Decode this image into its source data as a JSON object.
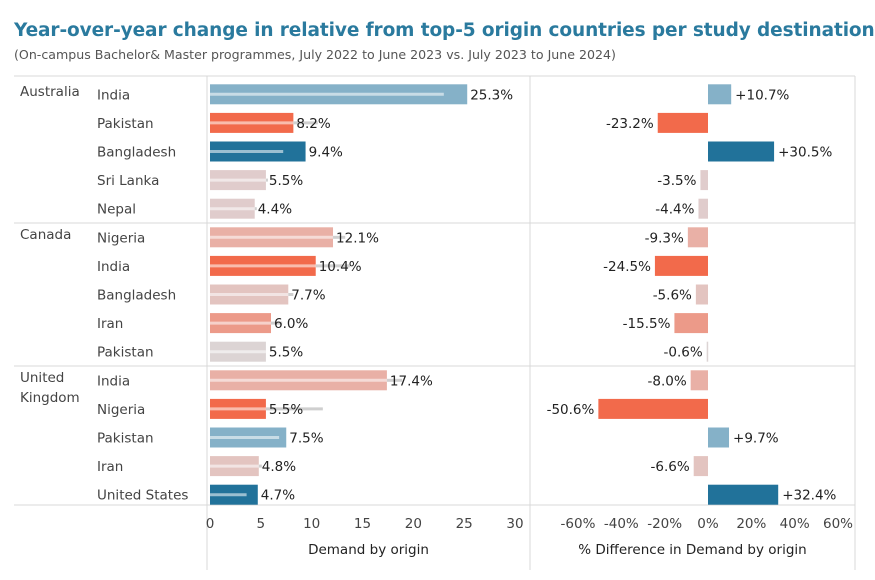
{
  "chart_data": {
    "type": "bar",
    "title": "Year-over-year change in relative from top-5 origin countries per study destination",
    "subtitle": "(On-campus Bachelor& Master programmes, July 2022 to June 2023 vs. July 2023 to June 2024)",
    "panels": [
      {
        "xlabel": "Demand by origin",
        "xlim": [
          0,
          30
        ],
        "ticks": [
          "0",
          "5",
          "10",
          "15",
          "20",
          "25",
          "30"
        ],
        "tick_values": [
          0,
          5,
          10,
          15,
          20,
          25,
          30
        ]
      },
      {
        "xlabel": "% Difference in Demand by origin",
        "xlim": [
          -60,
          60
        ],
        "ticks": [
          "-60%",
          "-40%",
          "-20%",
          "0%",
          "20%",
          "40%",
          "60%"
        ],
        "tick_values": [
          -60,
          -40,
          -20,
          0,
          20,
          40,
          60
        ]
      }
    ],
    "groups": [
      {
        "destination": [
          "Australia"
        ],
        "rows": [
          {
            "origin": "India",
            "demand": 25.3,
            "demand_label": "25.3%",
            "prev": 23,
            "diff": 10.7,
            "diff_label": "+10.7%",
            "color": "#85b1c8"
          },
          {
            "origin": "Pakistan",
            "demand": 8.2,
            "demand_label": "8.2%",
            "prev": 10.6,
            "diff": -23.2,
            "diff_label": "-23.2%",
            "color": "#f26a4b"
          },
          {
            "origin": "Bangladesh",
            "demand": 9.4,
            "demand_label": "9.4%",
            "prev": 7.2,
            "diff": 30.5,
            "diff_label": "+30.5%",
            "color": "#21729a"
          },
          {
            "origin": "Sri Lanka",
            "demand": 5.5,
            "demand_label": "5.5%",
            "prev": 5.7,
            "diff": -3.5,
            "diff_label": "-3.5%",
            "color": "#e0cccc"
          },
          {
            "origin": "Nepal",
            "demand": 4.4,
            "demand_label": "4.4%",
            "prev": 4.6,
            "diff": -4.4,
            "diff_label": "-4.4%",
            "color": "#e0cccc"
          }
        ]
      },
      {
        "destination": [
          "Canada"
        ],
        "rows": [
          {
            "origin": "Nigeria",
            "demand": 12.1,
            "demand_label": "12.1%",
            "prev": 13.3,
            "diff": -9.3,
            "diff_label": "-9.3%",
            "color": "#e9b0a6"
          },
          {
            "origin": "India",
            "demand": 10.4,
            "demand_label": "10.4%",
            "prev": 13.8,
            "diff": -24.5,
            "diff_label": "-24.5%",
            "color": "#f26a4b"
          },
          {
            "origin": "Bangladesh",
            "demand": 7.7,
            "demand_label": "7.7%",
            "prev": 8.2,
            "diff": -5.6,
            "diff_label": "-5.6%",
            "color": "#e3c4c0"
          },
          {
            "origin": "Iran",
            "demand": 6.0,
            "demand_label": "6.0%",
            "prev": 7.1,
            "diff": -15.5,
            "diff_label": "-15.5%",
            "color": "#ec9a89"
          },
          {
            "origin": "Pakistan",
            "demand": 5.5,
            "demand_label": "5.5%",
            "prev": 5.5,
            "diff": -0.6,
            "diff_label": "-0.6%",
            "color": "#dcd4d4"
          }
        ]
      },
      {
        "destination": [
          "United",
          "Kingdom"
        ],
        "rows": [
          {
            "origin": "India",
            "demand": 17.4,
            "demand_label": "17.4%",
            "prev": 18.9,
            "diff": -8.0,
            "diff_label": "-8.0%",
            "color": "#e9b0a6"
          },
          {
            "origin": "Nigeria",
            "demand": 5.5,
            "demand_label": "5.5%",
            "prev": 11.1,
            "diff": -50.6,
            "diff_label": "-50.6%",
            "color": "#f26a4b"
          },
          {
            "origin": "Pakistan",
            "demand": 7.5,
            "demand_label": "7.5%",
            "prev": 6.8,
            "diff": 9.7,
            "diff_label": "+9.7%",
            "color": "#85b1c8"
          },
          {
            "origin": "Iran",
            "demand": 4.8,
            "demand_label": "4.8%",
            "prev": 5.1,
            "diff": -6.6,
            "diff_label": "-6.6%",
            "color": "#e3c4c0"
          },
          {
            "origin": "United States",
            "demand": 4.7,
            "demand_label": "4.7%",
            "prev": 3.6,
            "diff": 32.4,
            "diff_label": "+32.4%",
            "color": "#21729a"
          }
        ]
      }
    ]
  }
}
